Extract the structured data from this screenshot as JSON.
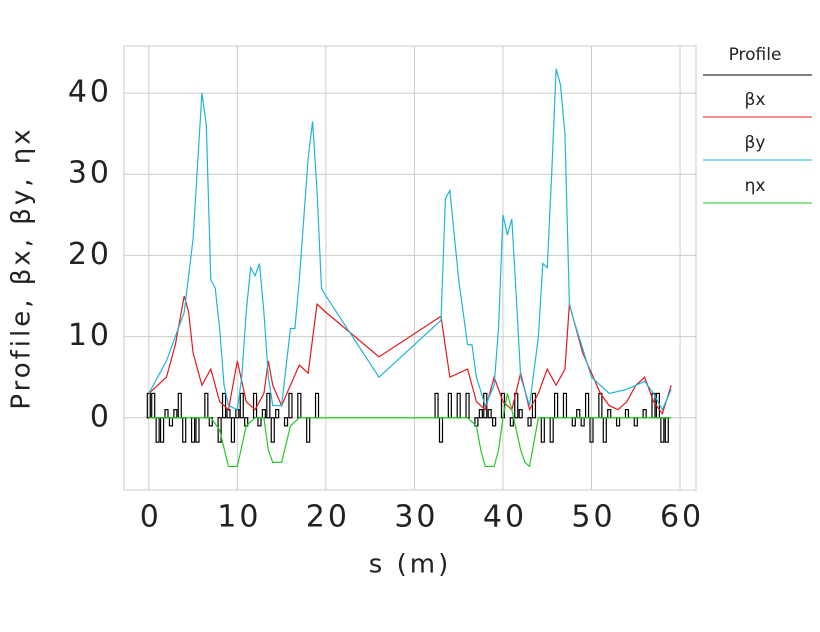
{
  "chart_data": {
    "type": "line",
    "xlabel": "s  (m)",
    "ylabel": "Profile,  βx,  βy,  ηx",
    "legend_title": "Profile",
    "xlim": [
      -2.8,
      61.8
    ],
    "ylim": [
      -8.9,
      45.8
    ],
    "xticks": [
      0,
      10,
      20,
      30,
      40,
      50,
      60
    ],
    "yticks": [
      0,
      10,
      20,
      30,
      40
    ],
    "grid": true,
    "legend": "right",
    "profile": {
      "color": "#000000",
      "x": [
        0,
        0.5,
        1,
        1.5,
        2,
        2.5,
        3,
        3.5,
        4,
        5,
        5.5,
        6.5,
        7,
        8,
        8.5,
        9,
        9.5,
        10,
        10.5,
        11,
        12,
        12.5,
        13,
        13.5,
        14,
        14.5,
        15.5,
        16,
        17,
        18,
        19,
        32.5,
        33,
        34,
        35,
        36,
        37,
        37.5,
        38,
        38.5,
        39,
        40,
        41,
        41.5,
        42,
        43,
        43.5,
        44.5,
        45.5,
        46,
        47,
        48,
        48.5,
        49,
        49.5,
        50,
        51,
        51.5,
        52,
        53,
        54,
        55,
        56,
        57,
        57.5,
        58,
        58.5
      ],
      "values": [
        3,
        3,
        -3,
        -3,
        1,
        -1,
        1,
        3,
        -3,
        -3,
        -3,
        3,
        -1,
        -3,
        3,
        1,
        -3,
        1,
        3,
        -1,
        3,
        -1,
        1,
        3,
        -3,
        1,
        -1,
        3,
        3,
        -3,
        3,
        3,
        -3,
        3,
        3,
        3,
        -1,
        1,
        3,
        1,
        -1,
        3,
        -1,
        3,
        1,
        -1,
        3,
        -3,
        -3,
        3,
        3,
        -1,
        1,
        -1,
        3,
        -3,
        3,
        -3,
        1,
        -1,
        1,
        -1,
        1,
        3,
        3,
        -3,
        -3
      ]
    },
    "series": [
      {
        "name": "βx",
        "color": "#e31a1c",
        "x": [
          0,
          1,
          2,
          3,
          4,
          4.5,
          5,
          6,
          7,
          8,
          9,
          10,
          11,
          12,
          13,
          13.5,
          14,
          15,
          16,
          17,
          18,
          19,
          20,
          26,
          33,
          34,
          36,
          37,
          38,
          39,
          40,
          41,
          42,
          43,
          44,
          45,
          46,
          47,
          47.5,
          48,
          49,
          50,
          51,
          52,
          53,
          54,
          55,
          56,
          57,
          58,
          59
        ],
        "values": [
          3,
          4,
          5,
          9,
          15,
          13,
          8,
          4,
          6,
          2,
          1,
          7,
          2,
          1,
          3,
          7,
          4,
          1.5,
          4,
          6.5,
          5.5,
          14,
          13,
          7.5,
          12.5,
          5,
          6,
          2,
          1,
          5,
          2,
          1,
          5.5,
          1,
          3,
          6,
          4,
          6,
          14,
          12,
          8,
          5.5,
          3,
          1.5,
          1,
          2,
          4,
          5,
          2,
          0.5,
          4
        ]
      },
      {
        "name": "βy",
        "color": "#1fb5d8",
        "x": [
          0,
          2,
          4,
          5,
          6,
          6.5,
          7,
          7.5,
          8,
          8.5,
          9,
          10,
          10.5,
          11,
          11.5,
          12,
          12.5,
          13,
          13.5,
          14,
          15,
          16,
          16.5,
          17,
          18,
          18.5,
          19,
          19.5,
          20,
          26,
          33,
          33.5,
          34,
          35,
          36,
          36.5,
          37,
          38,
          39,
          39.5,
          40,
          40.5,
          41,
          41.5,
          42,
          43,
          44,
          44.5,
          45,
          45.5,
          46,
          46.5,
          47,
          47.5,
          48,
          50,
          51,
          52,
          54,
          56,
          57,
          58,
          59
        ],
        "values": [
          3,
          7,
          13,
          22,
          40,
          36,
          17,
          16,
          11,
          4,
          1.5,
          1,
          5,
          13,
          18.5,
          17.5,
          19,
          13,
          5,
          1.5,
          1.5,
          11,
          11,
          17,
          32,
          36.5,
          28,
          16,
          15,
          5,
          12,
          27,
          28,
          17,
          9,
          9,
          5,
          1.5,
          4,
          11,
          25,
          22.5,
          24.5,
          15,
          5,
          1.5,
          10,
          19,
          18.5,
          30,
          43,
          41,
          35,
          14,
          12,
          5,
          4,
          3,
          3.5,
          4.5,
          3,
          1,
          3.5
        ]
      },
      {
        "name": "ηx",
        "color": "#22cc22",
        "x": [
          0,
          7,
          8,
          9,
          10,
          11,
          12,
          13,
          13.5,
          14,
          15,
          16,
          17,
          36,
          37,
          37.5,
          38,
          39,
          39.5,
          40,
          40.5,
          41,
          42,
          42.5,
          43,
          44,
          59
        ],
        "values": [
          0,
          0,
          -1.5,
          -6,
          -6,
          -1,
          0,
          0,
          -4,
          -5.5,
          -5.5,
          -1,
          0,
          0,
          -1,
          -4,
          -6,
          -6,
          -4,
          0,
          3,
          1,
          -4,
          -5.5,
          -6,
          0,
          0
        ]
      }
    ]
  }
}
